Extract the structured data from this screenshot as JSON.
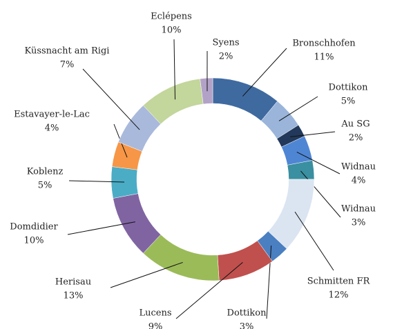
{
  "chart_data": {
    "type": "donut",
    "categories": [
      "Bronschhofen",
      "Dottikon",
      "Au SG",
      "Widnau",
      "Widnau",
      "Schmitten FR",
      "Dottikon",
      "Lucens",
      "Herisau",
      "Domdidier",
      "Koblenz",
      "Estavayer-le-Lac",
      "Küssnacht am Rigi",
      "Eclépens",
      "Syens"
    ],
    "values": [
      11,
      5,
      2,
      4,
      3,
      12,
      3,
      9,
      13,
      10,
      5,
      4,
      7,
      10,
      2
    ],
    "value_labels": [
      "11%",
      "5%",
      "2%",
      "4%",
      "3%",
      "12%",
      "3%",
      "9%",
      "13%",
      "10%",
      "5%",
      "4%",
      "7%",
      "10%",
      "2%"
    ],
    "colors": [
      "#3f6aa0",
      "#9ab5d9",
      "#22395b",
      "#4f86d4",
      "#3a8fa0",
      "#dbe5f1",
      "#4a7fc1",
      "#c0504d",
      "#9bbb59",
      "#8064a2",
      "#4bacc6",
      "#f79646",
      "#a9b9db",
      "#c3d69b",
      "#b3a2c7"
    ]
  }
}
